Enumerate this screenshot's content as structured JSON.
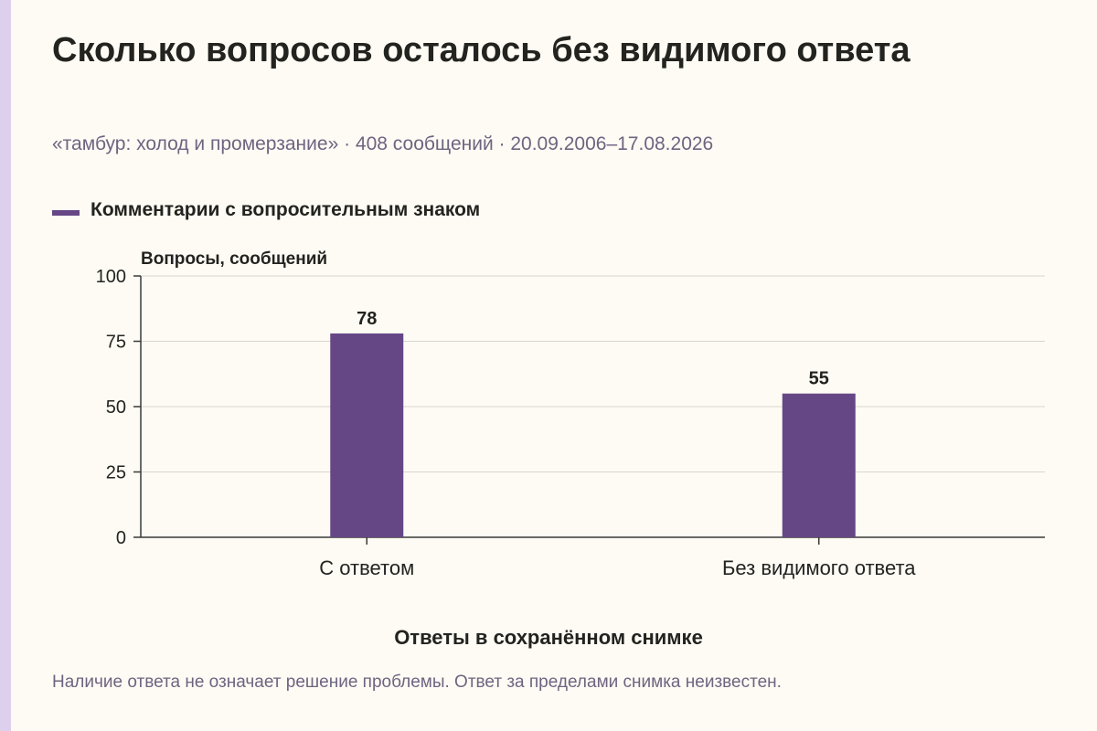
{
  "header": {
    "title": "Сколько вопросов осталось без видимого ответа",
    "subtitle": "«тамбур: холод и промерзание» · 408 сообщений · 20.09.2006–17.08.2026"
  },
  "footer": {
    "note": "Наличие ответа не означает решение проблемы. Ответ за пределами снимка неизвестен."
  },
  "colors": {
    "bar": "#664786",
    "accent_strip": "#ddd0ec",
    "grid": "#d9d6cf",
    "axis": "#3a3a36"
  },
  "chart_data": {
    "type": "bar",
    "title": "Сколько вопросов осталось без видимого ответа",
    "categories": [
      "С ответом",
      "Без видимого ответа"
    ],
    "series": [
      {
        "name": "Комментарии с вопросительным знаком",
        "values": [
          78,
          55
        ]
      }
    ],
    "ylabel": "Вопросы, сообщений",
    "xlabel": "Ответы в сохранённом снимке",
    "ylim": [
      0,
      100
    ],
    "yticks": [
      0,
      25,
      50,
      75,
      100
    ],
    "grid": true,
    "legend_position": "top-left",
    "data_labels": true
  }
}
